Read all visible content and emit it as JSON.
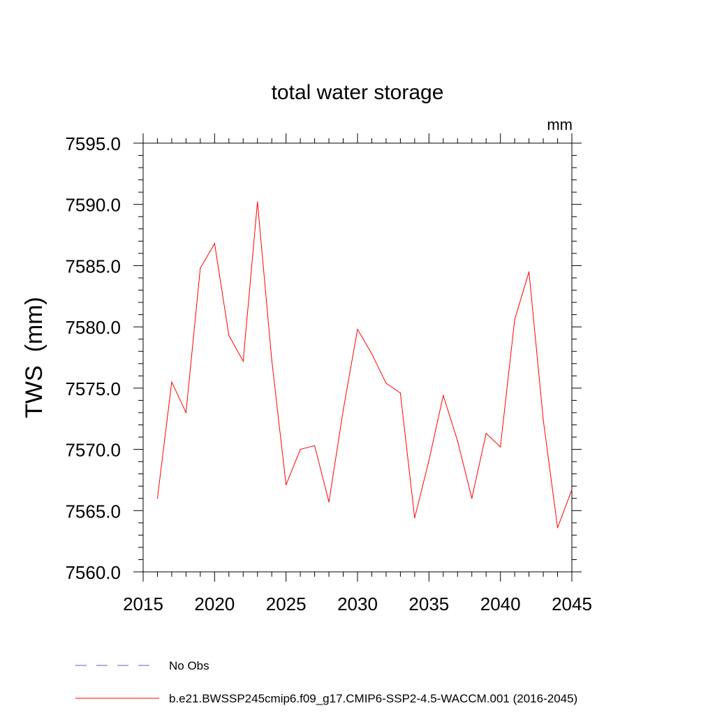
{
  "chart_data": {
    "type": "line",
    "title": "total water storage",
    "units_label": "mm",
    "ylabel": "TWS  (mm)",
    "xlabel": "",
    "xlim": [
      2015,
      2045
    ],
    "ylim": [
      7560,
      7595
    ],
    "x_ticks": [
      "2015",
      "2020",
      "2025",
      "2030",
      "2035",
      "2040",
      "2045"
    ],
    "y_ticks": [
      "7560.0",
      "7565.0",
      "7570.0",
      "7575.0",
      "7580.0",
      "7585.0",
      "7590.0",
      "7595.0"
    ],
    "grid": false,
    "legend_position": "bottom",
    "series": [
      {
        "name": "b.e21.BWSSP245cmip6.f09_g17.CMIP6-SSP2-4.5-WACCM.001 (2016-2045)",
        "color": "#ff0000",
        "style": "solid",
        "x": [
          2016,
          2017,
          2018,
          2019,
          2020,
          2021,
          2022,
          2023,
          2024,
          2025,
          2026,
          2027,
          2028,
          2029,
          2030,
          2031,
          2032,
          2033,
          2034,
          2035,
          2036,
          2037,
          2038,
          2039,
          2040,
          2041,
          2042,
          2043,
          2044,
          2045
        ],
        "values": [
          7566.0,
          7575.5,
          7573.0,
          7584.8,
          7586.8,
          7579.3,
          7577.2,
          7590.2,
          7577.3,
          7567.1,
          7570.0,
          7570.3,
          7565.7,
          7573.2,
          7579.8,
          7577.8,
          7575.4,
          7574.6,
          7564.4,
          7569.1,
          7574.4,
          7570.7,
          7566.0,
          7571.3,
          7570.2,
          7580.6,
          7584.5,
          7572.4,
          7563.6,
          7566.7
        ]
      },
      {
        "name": "No Obs",
        "color": "#6a5acd",
        "style": "dashed",
        "x": [],
        "values": []
      }
    ]
  }
}
